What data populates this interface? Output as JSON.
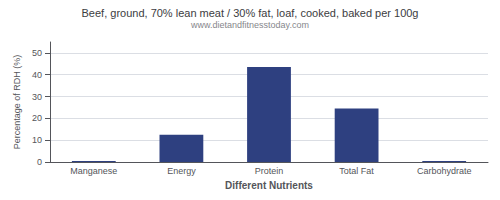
{
  "chart_data": {
    "type": "bar",
    "title": "Beef, ground, 70% lean meat / 30% fat, loaf, cooked, baked per 100g",
    "subtitle": "www.dietandfitnesstoday.com",
    "categories": [
      "Manganese",
      "Energy",
      "Protein",
      "Total Fat",
      "Carbohydrate"
    ],
    "values": [
      0.5,
      12.5,
      43.5,
      24.5,
      0.5
    ],
    "color": "#2e4080",
    "xlabel": "Different Nutrients",
    "ylabel": "Percentage of RDH (%)",
    "ylim": [
      0,
      55
    ],
    "yticks": [
      0,
      10,
      20,
      30,
      40,
      50
    ],
    "grid": true
  }
}
